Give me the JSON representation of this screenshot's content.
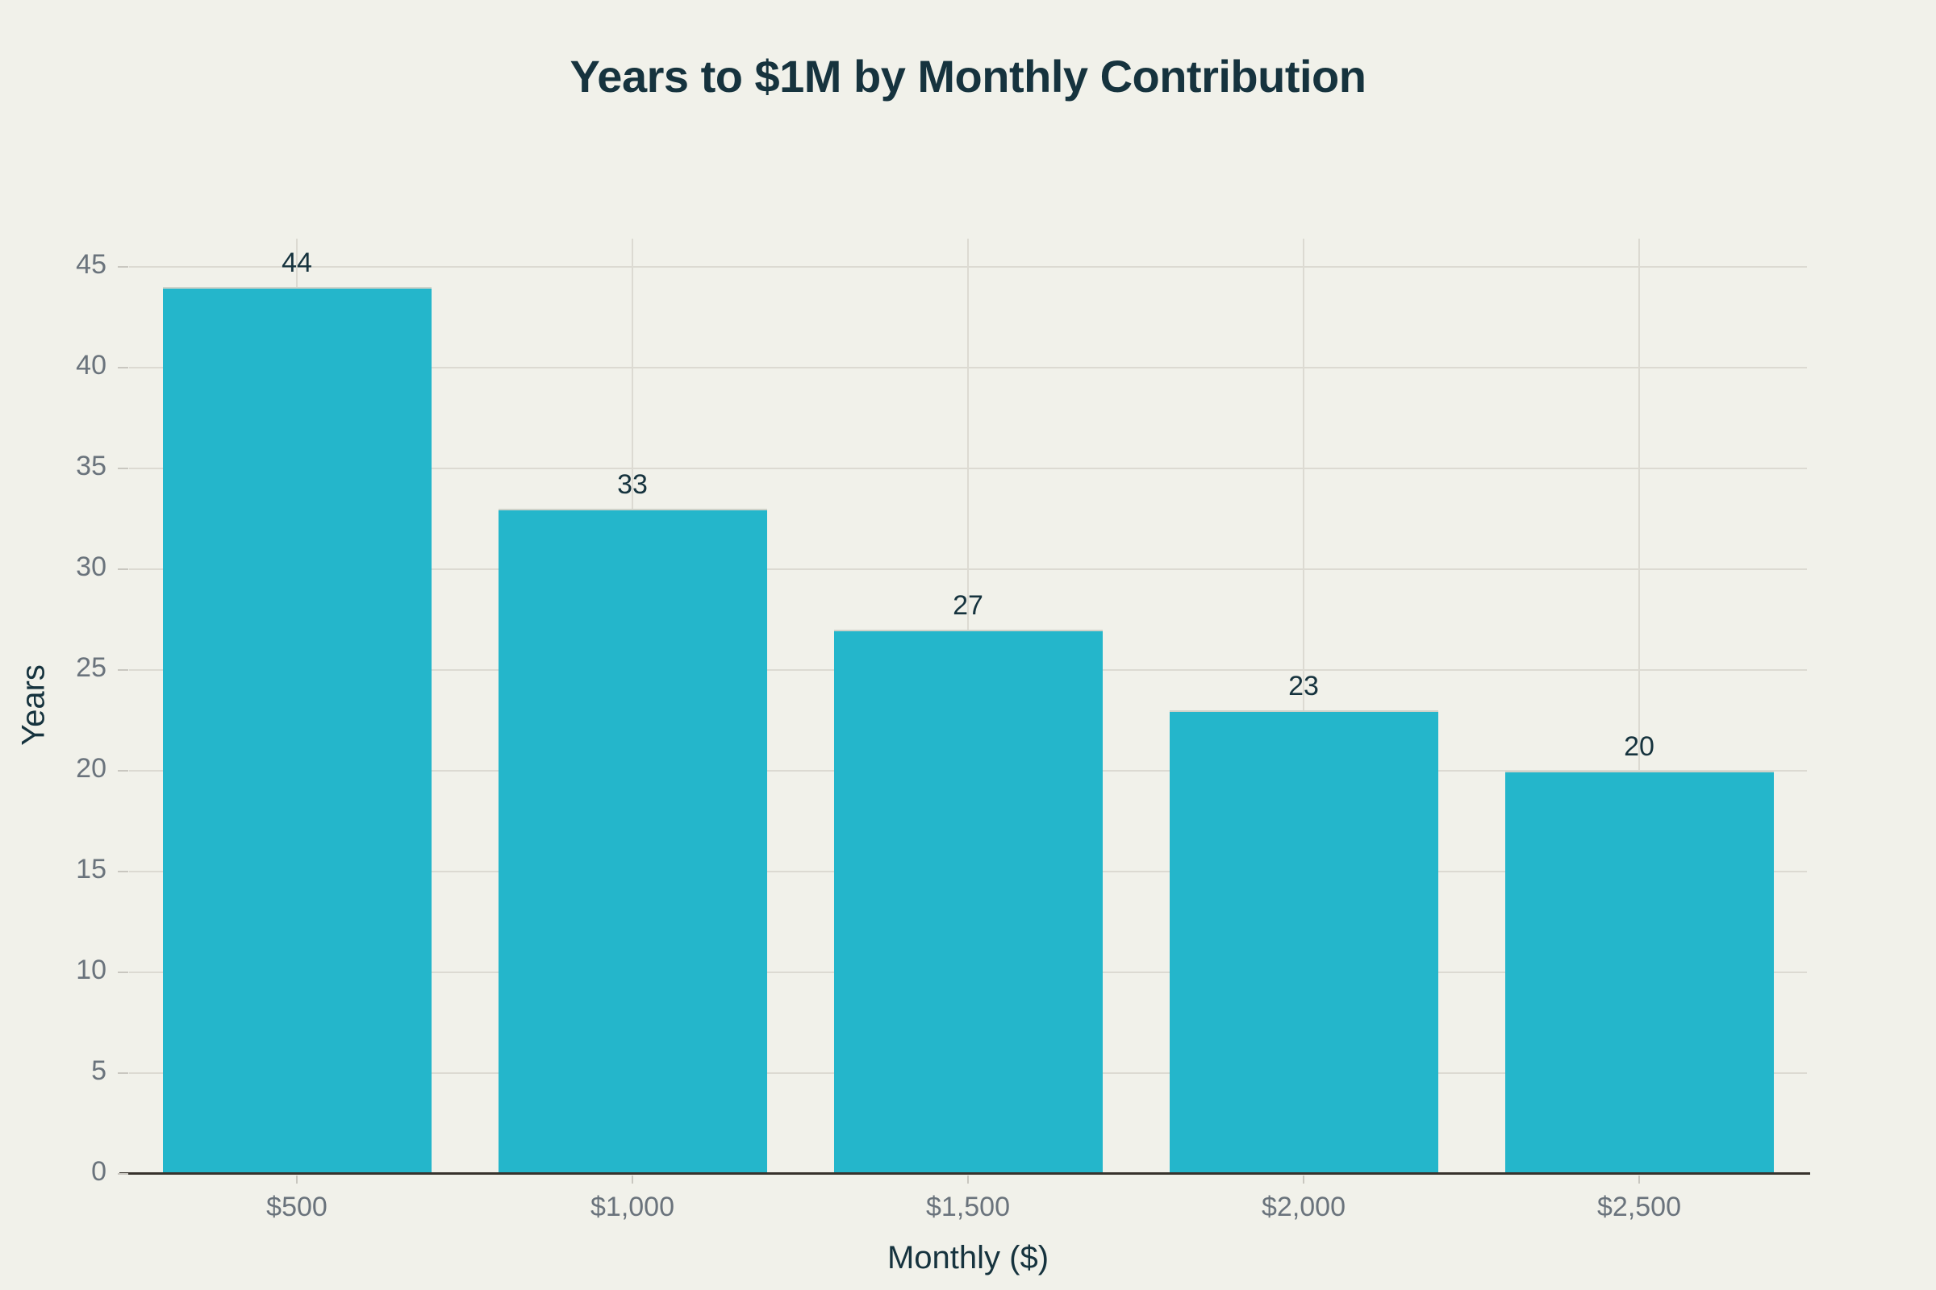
{
  "chart_data": {
    "type": "bar",
    "title": "Years to $1M by Monthly Contribution",
    "xlabel": "Monthly ($)",
    "ylabel": "Years",
    "categories": [
      "$500",
      "$1,000",
      "$1,500",
      "$2,000",
      "$2,500"
    ],
    "values": [
      44,
      33,
      27,
      23,
      20
    ],
    "bar_labels": [
      "44",
      "33",
      "27",
      "23",
      "20"
    ],
    "yticks": [
      0,
      5,
      10,
      15,
      20,
      25,
      30,
      35,
      40,
      45
    ],
    "ylim": [
      0,
      46.4
    ],
    "grid": true,
    "legend": false
  },
  "colors": {
    "background": "#f1f1ea",
    "bar": "#24b6cb",
    "bar_edge": "#cfd2c9",
    "title_text": "#16333e",
    "tick_text": "#6a737c",
    "gridline": "#dcdad2",
    "axis_line": "#37322c",
    "tick_mark": "#c9c7c0"
  }
}
